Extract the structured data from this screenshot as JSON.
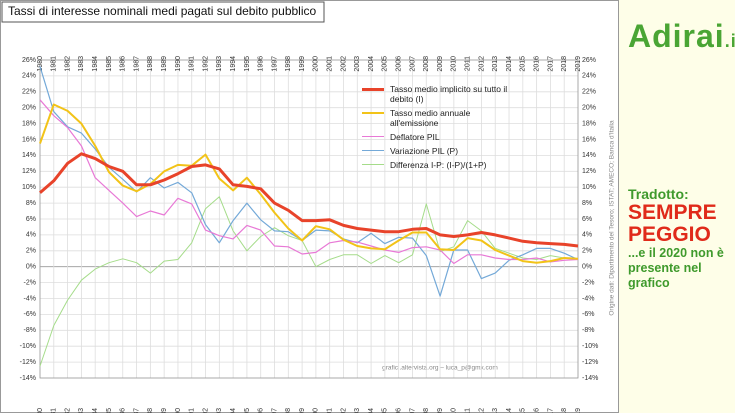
{
  "chart_data": {
    "type": "line",
    "title": "Tassi di interesse nominali medi pagati sul debito pubblico",
    "categories": [
      "1980",
      "1981",
      "1982",
      "1983",
      "1984",
      "1985",
      "1986",
      "1987",
      "1988",
      "1989",
      "1990",
      "1991",
      "1992",
      "1993",
      "1994",
      "1995",
      "1996",
      "1997",
      "1998",
      "1999",
      "2000",
      "2001",
      "2002",
      "2003",
      "2004",
      "2005",
      "2006",
      "2007",
      "2008",
      "2009",
      "2010",
      "2011",
      "2012",
      "2013",
      "2014",
      "2015",
      "2016",
      "2017",
      "2018",
      "2019"
    ],
    "series": [
      {
        "name": "Tasso medio implicito su tutto il debito (I)",
        "color": "#e8432a",
        "values": [
          9.3,
          10.8,
          13.0,
          14.2,
          13.6,
          12.6,
          12.0,
          10.3,
          10.3,
          10.9,
          11.7,
          12.6,
          12.8,
          12.3,
          10.3,
          10.1,
          9.8,
          8.0,
          7.1,
          5.8,
          5.8,
          5.9,
          5.2,
          4.8,
          4.6,
          4.4,
          4.4,
          4.7,
          4.8,
          4.0,
          3.8,
          4.0,
          4.3,
          4.0,
          3.6,
          3.2,
          3.0,
          2.9,
          2.8,
          2.6
        ]
      },
      {
        "name": "Tasso medio annuale all'emissione",
        "color": "#f2c318",
        "values": [
          15.5,
          20.4,
          19.6,
          18.0,
          15.2,
          11.9,
          10.2,
          9.5,
          10.4,
          12.0,
          12.8,
          12.7,
          14.1,
          11.1,
          9.6,
          11.2,
          9.1,
          6.8,
          4.8,
          3.3,
          5.1,
          4.7,
          3.4,
          2.6,
          2.3,
          2.2,
          3.3,
          4.3,
          4.3,
          2.2,
          2.1,
          3.6,
          3.3,
          2.1,
          1.4,
          0.7,
          0.5,
          0.7,
          1.1,
          1.0
        ]
      },
      {
        "name": "Deflatore PIL",
        "color": "#e879d6",
        "values": [
          21.0,
          19.0,
          17.5,
          15.2,
          11.2,
          9.6,
          8.0,
          6.3,
          7.0,
          6.5,
          8.6,
          7.9,
          4.6,
          3.9,
          3.5,
          5.2,
          4.6,
          2.6,
          2.5,
          1.6,
          1.8,
          3.0,
          3.3,
          3.1,
          2.6,
          2.1,
          1.8,
          2.4,
          2.5,
          2.1,
          0.4,
          1.5,
          1.5,
          1.1,
          0.9,
          0.9,
          1.1,
          0.6,
          0.8,
          0.9
        ]
      },
      {
        "name": "Variazione PIL (P)",
        "color": "#74a9d8",
        "values": [
          25.2,
          19.5,
          17.6,
          16.8,
          14.8,
          12.5,
          11.0,
          9.4,
          11.2,
          9.9,
          10.6,
          9.3,
          5.3,
          3.0,
          5.8,
          8.0,
          5.9,
          4.5,
          4.4,
          3.3,
          4.6,
          4.5,
          3.5,
          3.0,
          4.2,
          2.9,
          3.7,
          3.6,
          1.4,
          -3.7,
          2.1,
          2.1,
          -1.5,
          -0.8,
          0.8,
          1.5,
          2.3,
          2.3,
          1.7,
          0.9
        ]
      },
      {
        "name": "Differenza I-P: (I-P)/(1+P)",
        "color": "#a5dc8a",
        "values": [
          -12.5,
          -7.4,
          -4.2,
          -1.7,
          -0.3,
          0.5,
          1.0,
          0.5,
          -0.8,
          0.7,
          0.9,
          3.0,
          7.3,
          8.8,
          4.5,
          2.0,
          3.8,
          4.9,
          3.9,
          3.3,
          0.0,
          0.9,
          1.5,
          1.5,
          0.4,
          1.4,
          0.5,
          1.5,
          7.9,
          1.9,
          2.5,
          5.8,
          4.5,
          2.3,
          1.7,
          1.1,
          0.9,
          1.4,
          1.1,
          1.0
        ]
      }
    ],
    "ylim": [
      -14,
      26
    ],
    "yticks": [
      {
        "value": -14,
        "label": "-14%"
      },
      {
        "value": -12,
        "label": "-12%"
      },
      {
        "value": -10,
        "label": "-10%"
      },
      {
        "value": -8,
        "label": "-8%"
      },
      {
        "value": -6,
        "label": "-6%"
      },
      {
        "value": -4,
        "label": "-4%"
      },
      {
        "value": -2,
        "label": "-2%"
      },
      {
        "value": 0,
        "label": "0%"
      },
      {
        "value": 2,
        "label": "2%"
      },
      {
        "value": 4,
        "label": "4%"
      },
      {
        "value": 6,
        "label": "6%"
      },
      {
        "value": 8,
        "label": "8%"
      },
      {
        "value": 10,
        "label": "10%"
      },
      {
        "value": 12,
        "label": "12%"
      },
      {
        "value": 14,
        "label": "14%"
      },
      {
        "value": 16,
        "label": "16%"
      },
      {
        "value": 18,
        "label": "18%"
      },
      {
        "value": 20,
        "label": "20%"
      },
      {
        "value": 22,
        "label": "22%"
      },
      {
        "value": 24,
        "label": "24%"
      },
      {
        "value": 26,
        "label": "26%"
      }
    ],
    "grid": true,
    "watermark": "grafici.altervista.org – luca_p@gmx.com",
    "source": "Origine dati: Dipartimento del Tesoro; ISTAT; AMECO; Banca d'Italia"
  },
  "side": {
    "logo_main": "Adirai",
    "logo_tld": ".it",
    "line1": "Tradotto:",
    "line2": "SEMPRE PEGGIO",
    "line3": "...e il 2020 non è presente nel grafico"
  }
}
